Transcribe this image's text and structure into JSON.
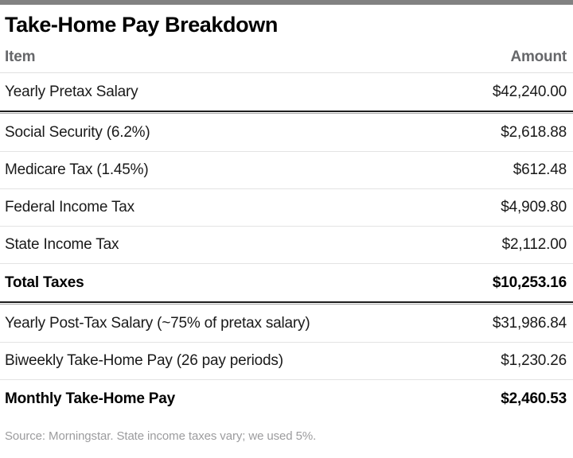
{
  "page": {
    "title": "Take-Home Pay Breakdown",
    "source_note": "Source: Morningstar. State income taxes vary; we used 5%."
  },
  "table": {
    "columns": [
      "Item",
      "Amount"
    ],
    "rows": [
      {
        "item": "Yearly Pretax Salary",
        "amount": "$42,240.00",
        "emphasis": false
      },
      {
        "item": "Social Security (6.2%)",
        "amount": "$2,618.88",
        "emphasis": false
      },
      {
        "item": "Medicare Tax (1.45%)",
        "amount": "$612.48",
        "emphasis": false
      },
      {
        "item": "Federal Income Tax",
        "amount": "$4,909.80",
        "emphasis": false
      },
      {
        "item": "State Income Tax",
        "amount": "$2,112.00",
        "emphasis": false
      },
      {
        "item": "Total Taxes",
        "amount": "$10,253.16",
        "emphasis": true
      },
      {
        "item": "Yearly Post-Tax Salary (~75% of pretax salary)",
        "amount": "$31,986.84",
        "emphasis": false
      },
      {
        "item": "Biweekly Take-Home Pay (26 pay periods)",
        "amount": "$1,230.26",
        "emphasis": false
      },
      {
        "item": "Monthly Take-Home Pay",
        "amount": "$2,460.53",
        "emphasis": true
      }
    ]
  },
  "chart_data": {
    "type": "table",
    "title": "Take-Home Pay Breakdown",
    "columns": [
      "Item",
      "Amount"
    ],
    "rows": [
      [
        "Yearly Pretax Salary",
        42240.0
      ],
      [
        "Social Security (6.2%)",
        2618.88
      ],
      [
        "Medicare Tax (1.45%)",
        612.48
      ],
      [
        "Federal Income Tax",
        4909.8
      ],
      [
        "State Income Tax",
        2112.0
      ],
      [
        "Total Taxes",
        10253.16
      ],
      [
        "Yearly Post-Tax Salary (~75% of pretax salary)",
        31986.84
      ],
      [
        "Biweekly Take-Home Pay (26 pay periods)",
        1230.26
      ],
      [
        "Monthly Take-Home Pay",
        2460.53
      ]
    ],
    "annotations": [
      "Source: Morningstar. State income taxes vary; we used 5%."
    ]
  },
  "colors": {
    "topbar": "#828282",
    "header_text": "#66676a",
    "body_text": "#1a1a1a",
    "thin_rule": "#e3e3e3",
    "heavy_rule": "#1c1c1c",
    "source_text": "#9c9c9e"
  }
}
